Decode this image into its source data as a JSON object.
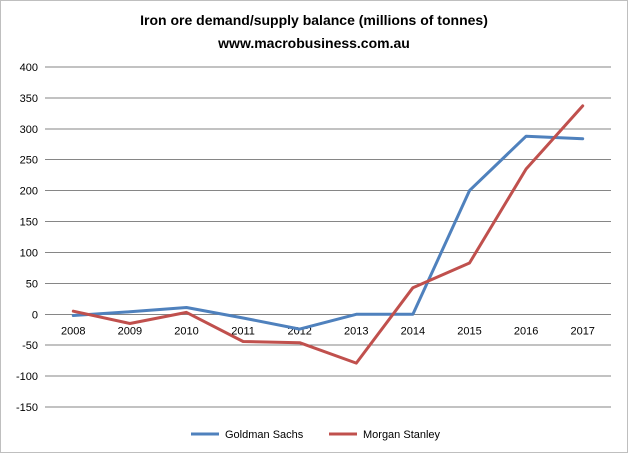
{
  "chart_data": {
    "type": "line",
    "title": "Iron ore demand/supply balance (millions of tonnes)",
    "subtitle": "www.macrobusiness.com.au",
    "xlabel": "",
    "ylabel": "",
    "ylim": [
      -150,
      400
    ],
    "y_ticks": [
      400,
      350,
      300,
      250,
      200,
      150,
      100,
      50,
      0,
      -50,
      -100,
      -150
    ],
    "grid": true,
    "legend_position": "bottom",
    "categories": [
      "2008",
      "2009",
      "2010",
      "2011",
      "2012",
      "2013",
      "2014",
      "2015",
      "2016",
      "2017"
    ],
    "series": [
      {
        "name": "Goldman Sachs",
        "color": "#4f81bd",
        "values": [
          -2,
          4,
          11,
          -6,
          -24,
          0,
          0,
          200,
          288,
          284
        ]
      },
      {
        "name": "Morgan Stanley",
        "color": "#c0504d",
        "values": [
          5,
          -15,
          3,
          -44,
          -46,
          -79,
          43,
          83,
          235,
          337
        ]
      }
    ]
  }
}
